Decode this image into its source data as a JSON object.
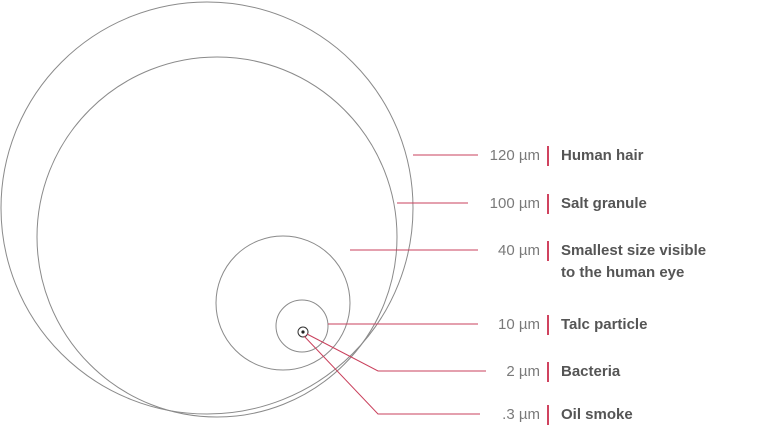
{
  "items": [
    {
      "size": "120 µm",
      "label": [
        "Human hair"
      ]
    },
    {
      "size": "100 µm",
      "label": [
        "Salt granule"
      ]
    },
    {
      "size": "40 µm",
      "label": [
        "Smallest size visible",
        "to the human eye"
      ]
    },
    {
      "size": "10 µm",
      "label": [
        "Talc particle"
      ]
    },
    {
      "size": "2 µm",
      "label": [
        "Bacteria"
      ]
    },
    {
      "size": ".3 µm",
      "label": [
        "Oil smoke"
      ]
    }
  ]
}
